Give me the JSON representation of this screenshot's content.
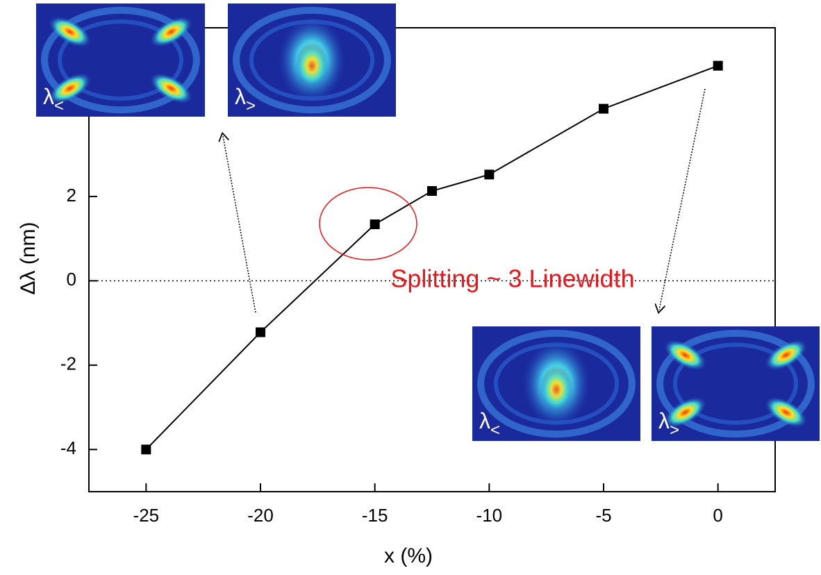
{
  "chart_data": {
    "type": "line",
    "x_label": "x (%)",
    "y_label": "Δλ (nm)",
    "x": [
      -25,
      -20,
      -15,
      -12.5,
      -10,
      -5,
      0
    ],
    "series": [
      {
        "color": "#000000",
        "values": [
          -4,
          -1.22,
          1.34,
          2.13,
          2.52,
          4.08,
          5.1
        ]
      }
    ],
    "xlim": [
      -27.5,
      2.5
    ],
    "xticks": [
      -25,
      -20,
      -15,
      -10,
      -5,
      0
    ],
    "ylim": [
      -5,
      6
    ],
    "yticks": [
      -4,
      -2,
      0,
      2
    ],
    "reference_line": 0,
    "annotation": {
      "text": "Splitting ~ 3 Linewidth",
      "color": "#e8161b"
    },
    "insets": [
      {
        "symbol": "λ",
        "sub": "<"
      },
      {
        "symbol": "λ",
        "sub": ">"
      },
      {
        "symbol": "λ",
        "sub": "<"
      },
      {
        "symbol": "λ",
        "sub": ">"
      }
    ]
  }
}
